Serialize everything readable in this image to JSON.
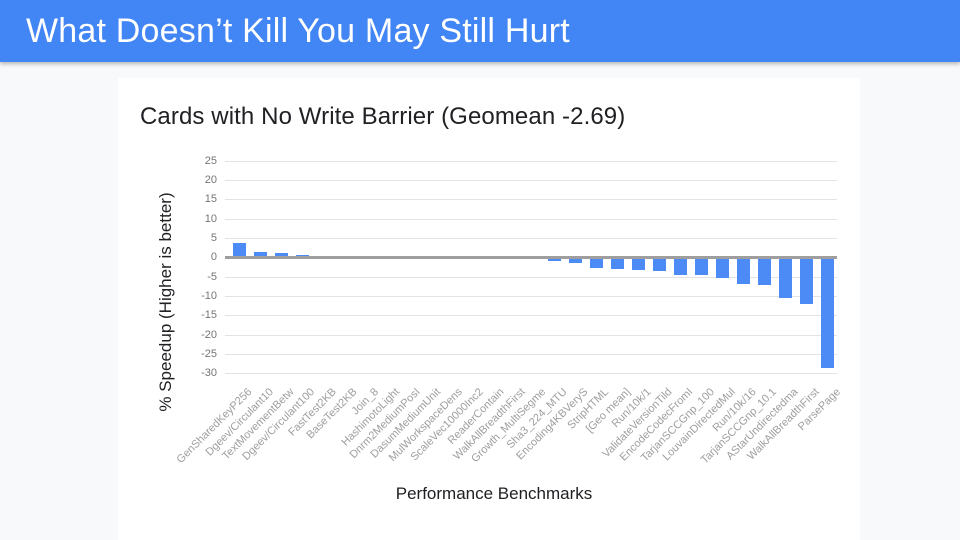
{
  "slide": {
    "header": {
      "title": "What Doesn’t Kill You May Still Hurt",
      "bg_color": "#4285f4",
      "text_color": "#ffffff"
    },
    "background_color": "#f8f9fa",
    "card_color": "#ffffff"
  },
  "chart_data": {
    "type": "bar",
    "title": "Cards with No Write Barrier (Geomean -2.69)",
    "xlabel": "Performance Benchmarks",
    "ylabel": "% Speedup (Higher is better)",
    "ylim": [
      -30,
      25
    ],
    "yticks": [
      25,
      20,
      15,
      10,
      5,
      0,
      -5,
      -10,
      -15,
      -20,
      -25,
      -30
    ],
    "grid": true,
    "legend": "none",
    "bar_color": "#4c8bf5",
    "gridline_color": "#e3e3e3",
    "zero_axis_color": "#9e9e9e",
    "categories": [
      "GenSharedKeyP256",
      "Dgeev/Circulant10",
      "TextMovementBetw",
      "Dgeev/Circulant100",
      "FastTest2KB",
      "BaseTest2KB",
      "Join_8",
      "HashimotoLight",
      "Dnrm2MediumPosI",
      "DasumMediumUnit",
      "MulWorkspaceDens",
      "ScaleVec10000Inc2",
      "ReaderContain",
      "WalkAllBreadthFirst",
      "Growth_MultiSegme",
      "Sha3_224_MTU",
      "Encoding4KBVeryS",
      "StripHTML",
      "[Geo mean]",
      "Run/10k/1",
      "ValidateVersionTild",
      "EncodeCodecFromI",
      "TarjanSCCGnp_100",
      "LouvainDirectedMul",
      "Run/10k/16",
      "TarjanSCCGnp_10.1",
      "AStarUndirectedma",
      "WalkAllBreadthFirst",
      "ParsePage"
    ],
    "values": [
      3.7,
      1.3,
      1.1,
      0.7,
      0,
      0,
      -0.05,
      -0.05,
      -0.1,
      -0.1,
      -0.1,
      -0.1,
      -0.15,
      -0.15,
      -0.2,
      -0.6,
      -1.1,
      -2.4,
      -2.69,
      -3.0,
      -3.4,
      -4.3,
      -4.4,
      -5.0,
      -6.7,
      -7.0,
      -10.2,
      -11.7,
      -28.4
    ]
  }
}
